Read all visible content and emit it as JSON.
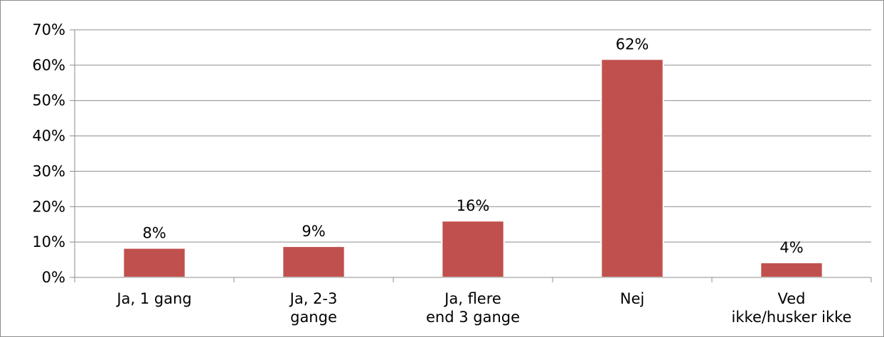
{
  "chart_data": {
    "type": "bar",
    "categories": [
      [
        "Ja, 1 gang"
      ],
      [
        "Ja, 2-3",
        "gange"
      ],
      [
        "Ja, flere",
        "end 3 gange"
      ],
      [
        "Nej"
      ],
      [
        "Ved",
        "ikke/husker ikke"
      ]
    ],
    "values": [
      8.3,
      8.8,
      16.0,
      61.7,
      4.2
    ],
    "data_labels": [
      "8%",
      "9%",
      "16%",
      "62%",
      "4%"
    ],
    "ylim": [
      0,
      70
    ],
    "yticks": [
      "0%",
      "10%",
      "20%",
      "30%",
      "40%",
      "50%",
      "60%",
      "70%"
    ],
    "grid": true,
    "legend": "none",
    "colors": {
      "bar": "#c0504d",
      "bar_border": "#ffffff",
      "grid": "#8c8c8c",
      "axis": "#8c8c8c"
    }
  }
}
